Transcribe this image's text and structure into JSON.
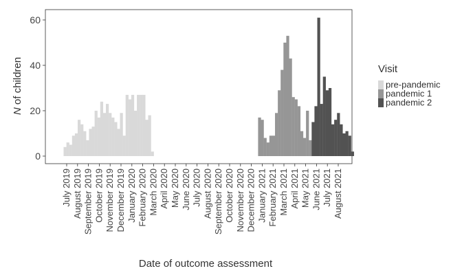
{
  "chart_data": {
    "type": "bar",
    "xlabel": "Date of outcome assessment",
    "ylabel_italic": "N",
    "ylabel_rest": " of children",
    "ylim": [
      0,
      64
    ],
    "yticks": [
      0,
      20,
      40,
      60
    ],
    "grid": false,
    "legend_placement": "right",
    "x_tick_labels": [
      "July 2019",
      "August 2019",
      "September 2019",
      "October 2019",
      "November 2019",
      "December 2019",
      "January 2020",
      "February 2020",
      "March 2020",
      "April 2020",
      "May 2020",
      "June 2020",
      "July 2020",
      "August 2020",
      "September 2020",
      "October 2020",
      "November 2020",
      "December 2020",
      "January 2021",
      "February 2021",
      "March 2021",
      "April 2021",
      "May 2021",
      "June 2021",
      "July 2021",
      "August 2021"
    ],
    "legend_title": "Visit",
    "series": [
      {
        "name": "pre-pandemic",
        "color": "#d9d9d9",
        "start_week": 0,
        "values": [
          4,
          6,
          5,
          9,
          10,
          16,
          14,
          11,
          7,
          12,
          13,
          20,
          17,
          24,
          19,
          23,
          19,
          17,
          15,
          12,
          19,
          9,
          27,
          25,
          27,
          20,
          27,
          27,
          27,
          16,
          18,
          2
        ]
      },
      {
        "name": "pandemic 1",
        "color": "#969696",
        "start_week": 69,
        "values": [
          17,
          16,
          8,
          6,
          9,
          9,
          19,
          29,
          38,
          50,
          53,
          43,
          26,
          25,
          22,
          11,
          8,
          20,
          7
        ]
      },
      {
        "name": "pandemic 2",
        "color": "#525252",
        "start_week": 88,
        "values": [
          15,
          22,
          61,
          23,
          35,
          29,
          30,
          14,
          16,
          19,
          14,
          10,
          11,
          9,
          2
        ]
      }
    ]
  }
}
